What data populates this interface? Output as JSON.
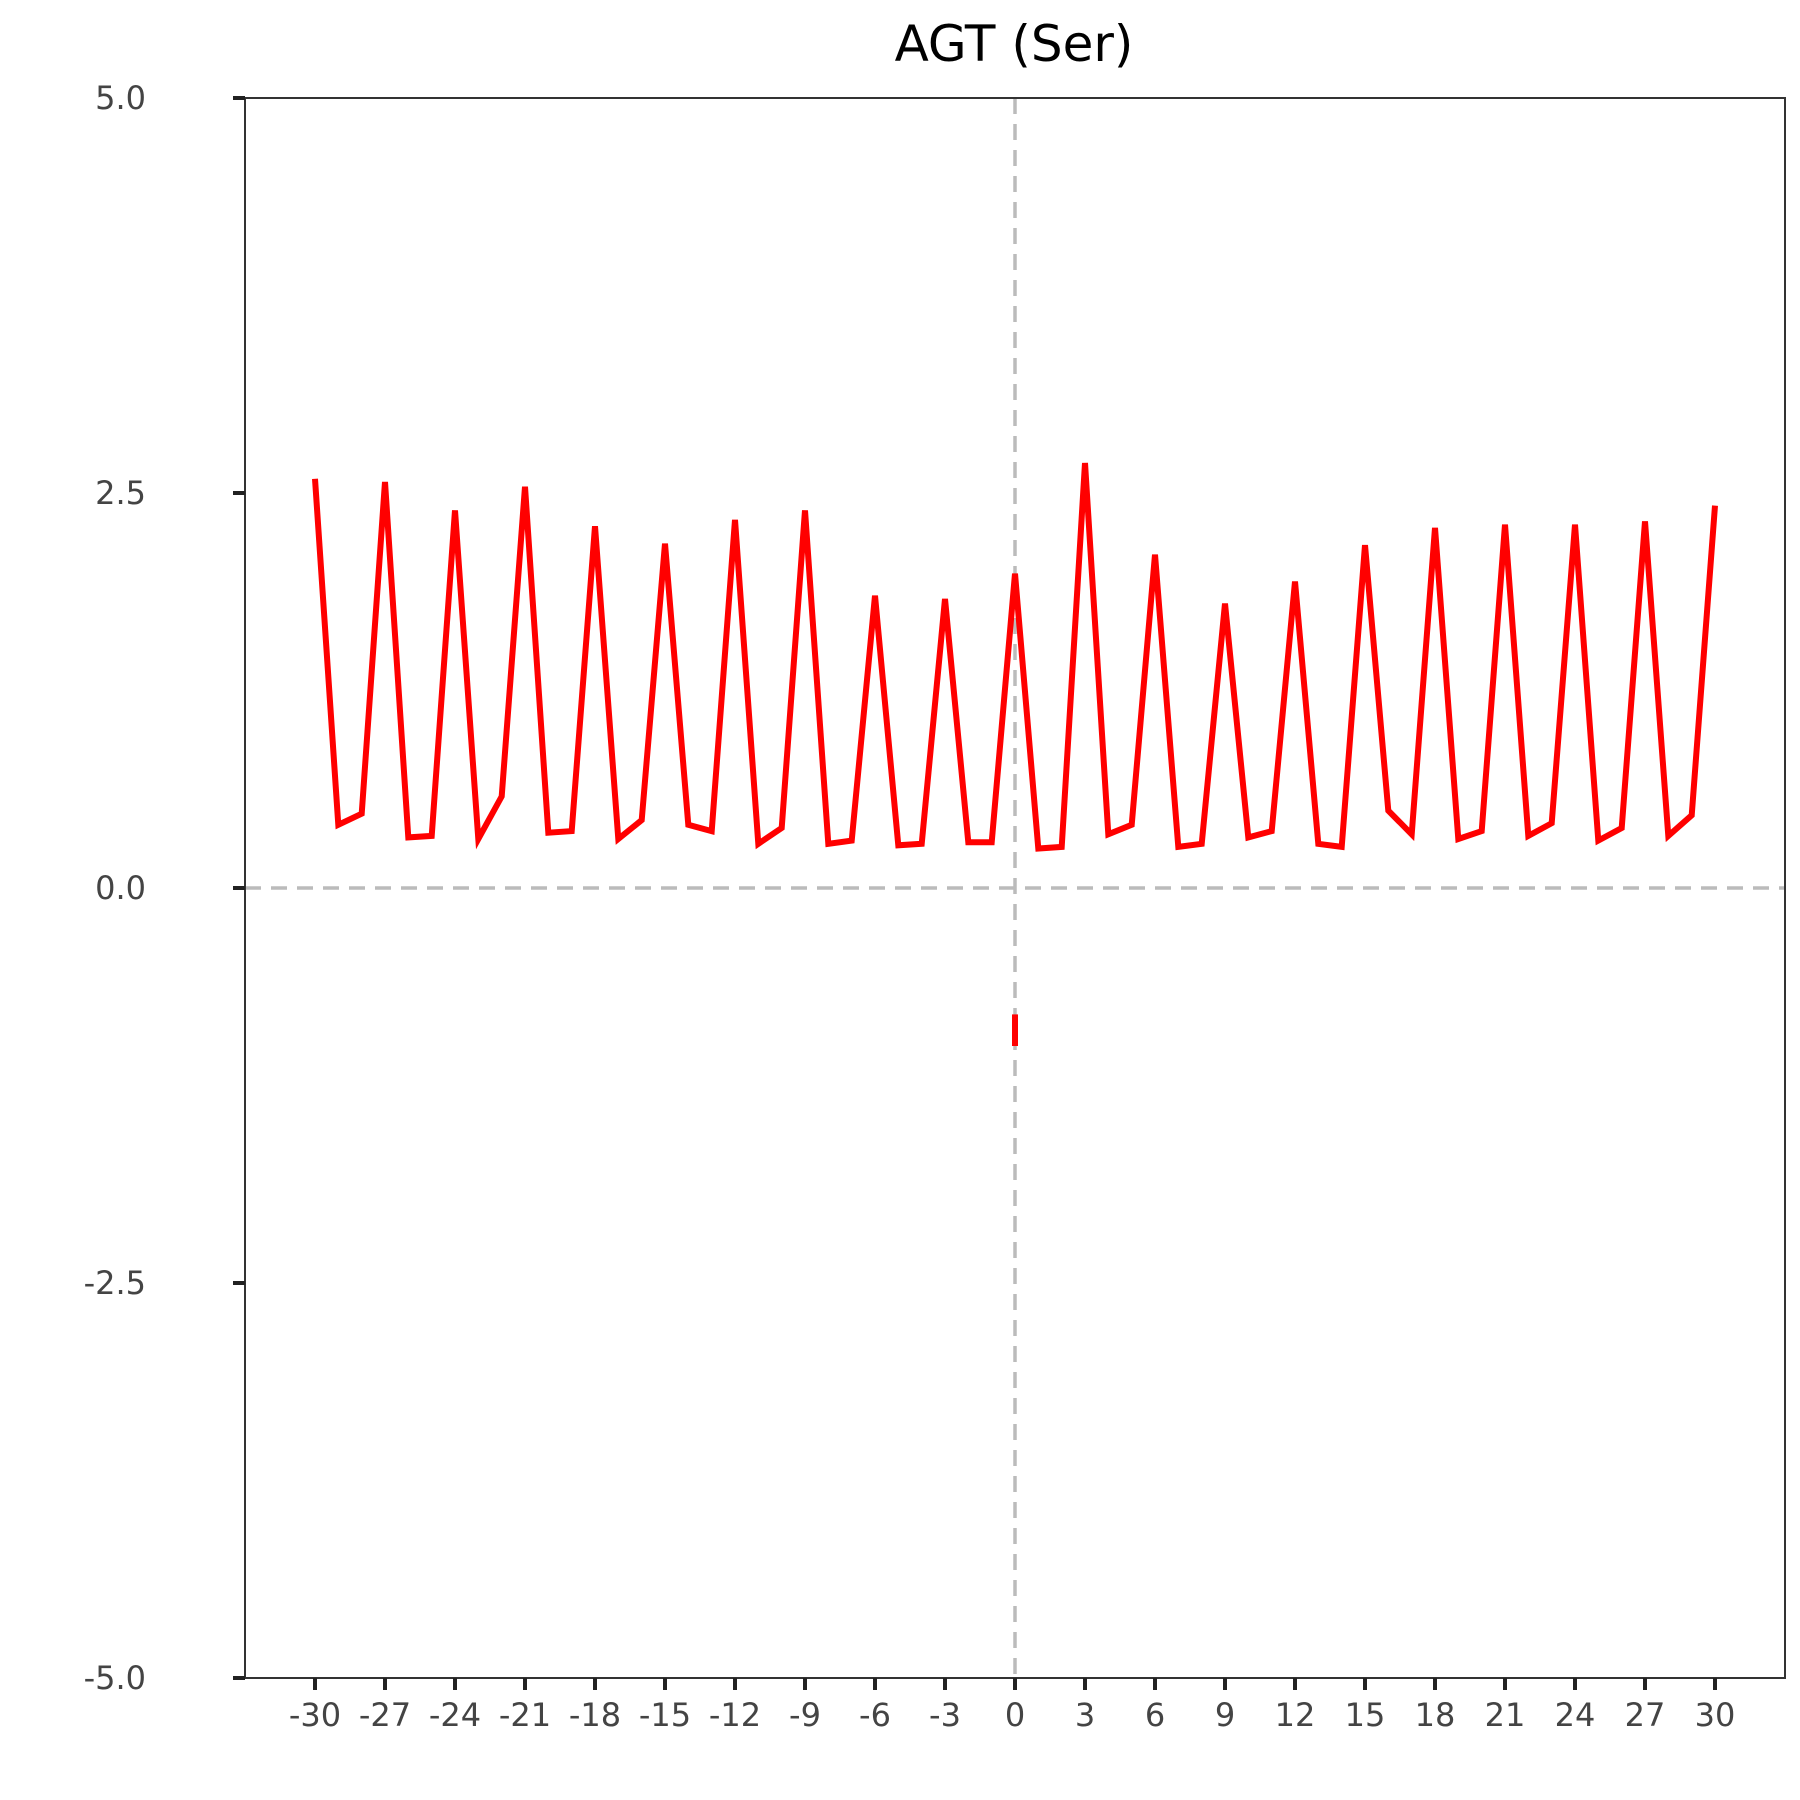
{
  "chart_data": {
    "type": "line",
    "title": "AGT (Ser)",
    "xlabel": "",
    "ylabel": "",
    "xlim": [
      -33,
      33
    ],
    "ylim": [
      -5.0,
      5.0
    ],
    "x_ticks": [
      -30,
      -27,
      -24,
      -21,
      -18,
      -15,
      -12,
      -9,
      -6,
      -3,
      0,
      3,
      6,
      9,
      12,
      15,
      18,
      21,
      24,
      27,
      30
    ],
    "y_ticks": [
      5.0,
      2.5,
      0.0,
      -2.5,
      -5.0
    ],
    "y_tick_labels": [
      "5.0",
      "2.5",
      "0.0",
      "-2.5",
      "-5.0"
    ],
    "grid": false,
    "reference_lines": {
      "x": 0,
      "y": 0
    },
    "series": [
      {
        "color": "#ff0000",
        "x": [
          -30,
          -29,
          -28,
          -27,
          -26,
          -25,
          -24,
          -23,
          -22,
          -21,
          -20,
          -19,
          -18,
          -17,
          -16,
          -15,
          -14,
          -13,
          -12,
          -11,
          -10,
          -9,
          -8,
          -7,
          -6,
          -5,
          -4,
          -3,
          -2,
          -1,
          0,
          1,
          2,
          3,
          4,
          5,
          6,
          7,
          8,
          9,
          10,
          11,
          12,
          13,
          14,
          15,
          16,
          17,
          18,
          19,
          20,
          21,
          22,
          23,
          24,
          25,
          26,
          27,
          28,
          29,
          30
        ],
        "y": [
          2.59,
          0.4,
          0.47,
          2.57,
          0.32,
          0.33,
          2.39,
          0.31,
          0.58,
          2.54,
          0.35,
          0.36,
          2.29,
          0.31,
          0.43,
          2.18,
          0.4,
          0.36,
          2.33,
          0.28,
          0.38,
          2.39,
          0.28,
          0.3,
          1.85,
          0.27,
          0.28,
          1.83,
          0.29,
          0.29,
          1.99,
          0.25,
          0.26,
          2.69,
          0.34,
          0.4,
          2.11,
          0.26,
          0.28,
          1.8,
          0.32,
          0.36,
          1.94,
          0.28,
          0.26,
          2.17,
          0.49,
          0.34,
          2.28,
          0.31,
          0.36,
          2.3,
          0.33,
          0.41,
          2.3,
          0.3,
          0.38,
          2.32,
          0.33,
          0.46,
          2.42
        ]
      },
      {
        "color": "#ff0000",
        "x": [
          0,
          0
        ],
        "y": [
          -0.8,
          -1.0
        ]
      }
    ]
  }
}
